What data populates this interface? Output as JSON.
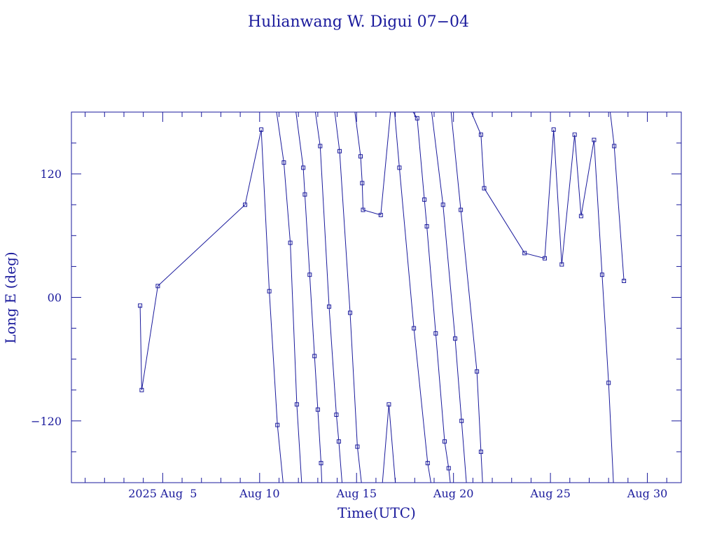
{
  "chart_data": {
    "type": "line",
    "title": "Hulianwang W. Digui 07−04",
    "xlabel": "Time(UTC)",
    "ylabel": "Long E (deg)",
    "xlim": [
      "2025-07-31T07:00",
      "2025-08-31T18:00"
    ],
    "ylim": [
      -180,
      180
    ],
    "x_ticks": [
      {
        "x": "2025-08-05T00:00",
        "label": "2025 Aug  5"
      },
      {
        "x": "2025-08-10T00:00",
        "label": "Aug 10"
      },
      {
        "x": "2025-08-15T00:00",
        "label": "Aug 15"
      },
      {
        "x": "2025-08-20T00:00",
        "label": "Aug 20"
      },
      {
        "x": "2025-08-25T00:00",
        "label": "Aug 25"
      },
      {
        "x": "2025-08-30T00:00",
        "label": "Aug 30"
      }
    ],
    "y_ticks": [
      {
        "y": 120,
        "label": "120"
      },
      {
        "y": 0,
        "label": "00"
      },
      {
        "y": -120,
        "label": "−120"
      }
    ],
    "grid": false,
    "color": "#1a1a9c",
    "series": [
      {
        "points": [
          [
            "2025-08-03T20:00",
            -8
          ],
          [
            "2025-08-03T22:00",
            -90
          ],
          [
            "2025-08-04T18:00",
            11
          ],
          [
            "2025-08-09T06:00",
            90
          ],
          [
            "2025-08-10T02:00",
            163
          ],
          [
            "2025-08-10T12:00",
            6
          ],
          [
            "2025-08-10T22:00",
            -124
          ],
          [
            "2025-08-11T05:00",
            -180
          ]
        ]
      },
      {
        "points": [
          [
            "2025-08-10T21:00",
            180
          ],
          [
            "2025-08-11T06:00",
            131
          ],
          [
            "2025-08-11T14:00",
            53
          ],
          [
            "2025-08-11T22:00",
            -104
          ],
          [
            "2025-08-12T04:00",
            -180
          ]
        ]
      },
      {
        "points": [
          [
            "2025-08-11T21:00",
            180
          ],
          [
            "2025-08-12T06:00",
            126
          ],
          [
            "2025-08-12T08:00",
            100
          ],
          [
            "2025-08-12T14:00",
            22
          ],
          [
            "2025-08-12T20:00",
            -57
          ],
          [
            "2025-08-13T00:00",
            -109
          ],
          [
            "2025-08-13T04:00",
            -161
          ],
          [
            "2025-08-13T05:00",
            -180
          ]
        ]
      },
      {
        "points": [
          [
            "2025-08-12T21:00",
            180
          ],
          [
            "2025-08-13T03:00",
            147
          ],
          [
            "2025-08-13T14:00",
            -9
          ],
          [
            "2025-08-13T23:00",
            -114
          ],
          [
            "2025-08-14T02:00",
            -140
          ],
          [
            "2025-08-14T06:00",
            -180
          ]
        ]
      },
      {
        "points": [
          [
            "2025-08-13T21:00",
            180
          ],
          [
            "2025-08-14T03:00",
            142
          ],
          [
            "2025-08-14T16:00",
            -15
          ],
          [
            "2025-08-15T01:00",
            -145
          ],
          [
            "2025-08-15T06:00",
            -180
          ]
        ]
      },
      {
        "points": [
          [
            "2025-08-14T22:00",
            180
          ],
          [
            "2025-08-15T05:00",
            137
          ],
          [
            "2025-08-15T07:00",
            111
          ],
          [
            "2025-08-15T08:00",
            85
          ],
          [
            "2025-08-16T06:00",
            80
          ],
          [
            "2025-08-16T18:00",
            180
          ]
        ]
      },
      {
        "points": [
          [
            "2025-08-16T08:00",
            -180
          ],
          [
            "2025-08-16T16:00",
            -104
          ],
          [
            "2025-08-17T00:00",
            -180
          ]
        ]
      },
      {
        "points": [
          [
            "2025-08-16T23:00",
            180
          ],
          [
            "2025-08-17T05:00",
            126
          ],
          [
            "2025-08-17T23:00",
            -30
          ],
          [
            "2025-08-18T16:00",
            -161
          ],
          [
            "2025-08-18T20:00",
            -180
          ]
        ]
      },
      {
        "points": [
          [
            "2025-08-17T22:00",
            180
          ],
          [
            "2025-08-18T03:00",
            174
          ],
          [
            "2025-08-18T12:00",
            95
          ],
          [
            "2025-08-18T15:00",
            69
          ],
          [
            "2025-08-19T02:00",
            -35
          ],
          [
            "2025-08-19T13:00",
            -140
          ],
          [
            "2025-08-19T18:00",
            -166
          ],
          [
            "2025-08-19T20:00",
            -180
          ]
        ]
      },
      {
        "points": [
          [
            "2025-08-18T21:00",
            180
          ],
          [
            "2025-08-19T11:00",
            90
          ],
          [
            "2025-08-20T02:00",
            -40
          ],
          [
            "2025-08-20T10:00",
            -120
          ],
          [
            "2025-08-20T16:00",
            -180
          ]
        ]
      },
      {
        "points": [
          [
            "2025-08-19T21:00",
            180
          ],
          [
            "2025-08-20T09:00",
            85
          ],
          [
            "2025-08-21T05:00",
            -72
          ],
          [
            "2025-08-21T10:00",
            -150
          ],
          [
            "2025-08-21T12:00",
            -180
          ]
        ]
      },
      {
        "points": [
          [
            "2025-08-20T22:00",
            180
          ],
          [
            "2025-08-21T10:00",
            158
          ],
          [
            "2025-08-21T14:00",
            106
          ],
          [
            "2025-08-23T16:00",
            43
          ],
          [
            "2025-08-24T17:00",
            38
          ],
          [
            "2025-08-25T04:00",
            163
          ],
          [
            "2025-08-25T14:00",
            32
          ],
          [
            "2025-08-26T06:00",
            158
          ],
          [
            "2025-08-26T14:00",
            79
          ],
          [
            "2025-08-27T06:00",
            153
          ],
          [
            "2025-08-27T16:00",
            22
          ],
          [
            "2025-08-28T00:00",
            -83
          ],
          [
            "2025-08-28T06:00",
            -180
          ]
        ]
      },
      {
        "points": [
          [
            "2025-08-28T02:00",
            180
          ],
          [
            "2025-08-28T07:00",
            147
          ],
          [
            "2025-08-28T19:00",
            16
          ]
        ]
      }
    ]
  }
}
